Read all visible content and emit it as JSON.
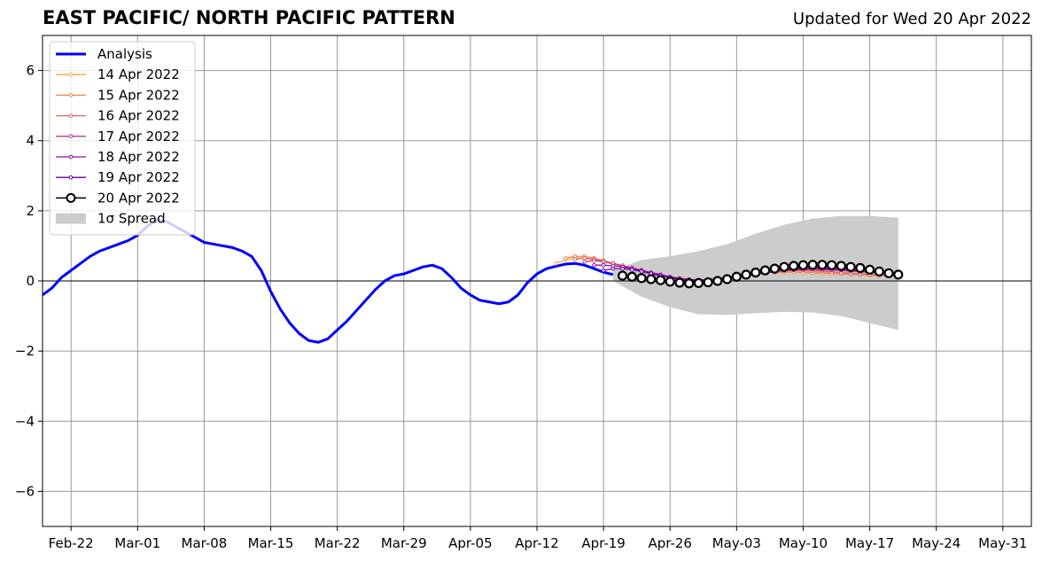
{
  "header": {
    "title": "EAST PACIFIC/ NORTH PACIFIC PATTERN",
    "updated": "Updated for Wed 20 Apr 2022"
  },
  "chart_data": {
    "type": "line",
    "title": "EAST PACIFIC/ NORTH PACIFIC PATTERN",
    "xlim": [
      "2022-02-19",
      "2022-06-03"
    ],
    "ylim": [
      -7,
      7
    ],
    "y_ticks": [
      -6,
      -4,
      -2,
      0,
      2,
      4,
      6
    ],
    "y_tick_labels": [
      "−6",
      "−4",
      "−2",
      "0",
      "2",
      "4",
      "6"
    ],
    "x_ticks": [
      "2022-02-22",
      "2022-03-01",
      "2022-03-08",
      "2022-03-15",
      "2022-03-22",
      "2022-03-29",
      "2022-04-05",
      "2022-04-12",
      "2022-04-19",
      "2022-04-26",
      "2022-05-03",
      "2022-05-10",
      "2022-05-17",
      "2022-05-24",
      "2022-05-31"
    ],
    "x_tick_labels": [
      "Feb-22",
      "Mar-01",
      "Mar-08",
      "Mar-15",
      "Mar-22",
      "Mar-29",
      "Apr-05",
      "Apr-12",
      "Apr-19",
      "Apr-26",
      "May-03",
      "May-10",
      "May-17",
      "May-24",
      "May-31"
    ],
    "grid": true,
    "legend_position": "upper-left",
    "legend": [
      {
        "label": "Analysis",
        "color": "#0000ff",
        "style": "thick-line"
      },
      {
        "label": "14 Apr 2022",
        "color": "#fca636",
        "style": "small-marker-line"
      },
      {
        "label": "15 Apr 2022",
        "color": "#f2844b",
        "style": "small-marker-line"
      },
      {
        "label": "16 Apr 2022",
        "color": "#e16462",
        "style": "small-marker-line"
      },
      {
        "label": "17 Apr 2022",
        "color": "#bf3984",
        "style": "small-marker-line"
      },
      {
        "label": "18 Apr 2022",
        "color": "#8f0da4",
        "style": "small-marker-line"
      },
      {
        "label": "19 Apr 2022",
        "color": "#5c01a6",
        "style": "small-marker-line"
      },
      {
        "label": "20 Apr 2022",
        "color": "#000000",
        "style": "large-open-marker-line"
      },
      {
        "label": "1σ Spread",
        "color": "#cccccc",
        "style": "patch"
      }
    ],
    "analysis": {
      "name": "Analysis",
      "color": "#0000ff",
      "start_date": "2022-02-19",
      "values": [
        -0.4,
        -0.2,
        0.1,
        0.3,
        0.5,
        0.7,
        0.85,
        0.95,
        1.05,
        1.15,
        1.3,
        1.55,
        1.75,
        1.7,
        1.55,
        1.4,
        1.25,
        1.1,
        1.05,
        1.0,
        0.95,
        0.85,
        0.7,
        0.3,
        -0.3,
        -0.8,
        -1.2,
        -1.5,
        -1.7,
        -1.75,
        -1.65,
        -1.4,
        -1.15,
        -0.85,
        -0.55,
        -0.25,
        0.0,
        0.15,
        0.2,
        0.3,
        0.4,
        0.45,
        0.35,
        0.1,
        -0.2,
        -0.4,
        -0.55,
        -0.6,
        -0.65,
        -0.6,
        -0.4,
        -0.05,
        0.2,
        0.35,
        0.42,
        0.48,
        0.5,
        0.45,
        0.35,
        0.25,
        0.18
      ]
    },
    "forecasts": [
      {
        "name": "14 Apr 2022",
        "color": "#fca636",
        "start_date": "2022-04-14",
        "values": [
          0.5,
          0.6,
          0.65,
          0.65,
          0.6,
          0.55,
          0.48,
          0.4,
          0.33,
          0.27,
          0.2,
          0.15,
          0.1,
          0.06,
          0.04,
          0.03,
          0.03,
          0.05,
          0.08,
          0.12,
          0.16,
          0.2,
          0.23,
          0.25,
          0.27,
          0.28,
          0.28,
          0.27,
          0.26,
          0.24,
          0.22,
          0.2,
          0.18,
          0.16,
          0.15
        ]
      },
      {
        "name": "15 Apr 2022",
        "color": "#f2844b",
        "start_date": "2022-04-15",
        "values": [
          0.65,
          0.7,
          0.7,
          0.65,
          0.58,
          0.5,
          0.42,
          0.34,
          0.27,
          0.2,
          0.14,
          0.09,
          0.05,
          0.03,
          0.03,
          0.05,
          0.08,
          0.11,
          0.15,
          0.18,
          0.21,
          0.23,
          0.24,
          0.25,
          0.25,
          0.24,
          0.23,
          0.22,
          0.21,
          0.2,
          0.19,
          0.18,
          0.17,
          0.16
        ]
      },
      {
        "name": "16 Apr 2022",
        "color": "#e16462",
        "start_date": "2022-04-16",
        "values": [
          0.62,
          0.65,
          0.62,
          0.56,
          0.5,
          0.43,
          0.36,
          0.29,
          0.22,
          0.16,
          0.1,
          0.06,
          0.03,
          0.02,
          0.03,
          0.06,
          0.09,
          0.13,
          0.17,
          0.21,
          0.24,
          0.27,
          0.29,
          0.3,
          0.3,
          0.29,
          0.28,
          0.26,
          0.24,
          0.22,
          0.2,
          0.18,
          0.16,
          0.15
        ]
      },
      {
        "name": "17 Apr 2022",
        "color": "#bf3984",
        "start_date": "2022-04-17",
        "values": [
          0.55,
          0.58,
          0.55,
          0.5,
          0.44,
          0.38,
          0.31,
          0.24,
          0.18,
          0.12,
          0.08,
          0.05,
          0.03,
          0.04,
          0.06,
          0.09,
          0.13,
          0.17,
          0.21,
          0.25,
          0.28,
          0.3,
          0.32,
          0.33,
          0.33,
          0.32,
          0.31,
          0.3,
          0.28,
          0.26,
          0.24,
          0.22,
          0.2
        ]
      },
      {
        "name": "18 Apr 2022",
        "color": "#8f0da4",
        "start_date": "2022-04-18",
        "values": [
          0.45,
          0.45,
          0.43,
          0.4,
          0.35,
          0.3,
          0.24,
          0.18,
          0.12,
          0.07,
          0.04,
          0.02,
          0.02,
          0.04,
          0.07,
          0.11,
          0.15,
          0.19,
          0.23,
          0.27,
          0.3,
          0.32,
          0.33,
          0.34,
          0.34,
          0.33,
          0.32,
          0.3,
          0.28,
          0.26,
          0.24,
          0.22
        ]
      },
      {
        "name": "19 Apr 2022",
        "color": "#5c01a6",
        "start_date": "2022-04-19",
        "values": [
          0.3,
          0.35,
          0.35,
          0.32,
          0.27,
          0.21,
          0.15,
          0.09,
          0.04,
          0.01,
          0.0,
          0.0,
          0.02,
          0.06,
          0.1,
          0.15,
          0.2,
          0.24,
          0.28,
          0.32,
          0.35,
          0.37,
          0.38,
          0.38,
          0.37,
          0.36,
          0.34,
          0.32,
          0.3,
          0.28,
          0.26
        ]
      },
      {
        "name": "20 Apr 2022",
        "color": "#000000",
        "start_date": "2022-04-21",
        "values": [
          0.15,
          0.12,
          0.08,
          0.05,
          0.02,
          -0.02,
          -0.05,
          -0.07,
          -0.06,
          -0.04,
          0.0,
          0.05,
          0.12,
          0.18,
          0.24,
          0.3,
          0.35,
          0.4,
          0.43,
          0.45,
          0.46,
          0.46,
          0.45,
          0.43,
          0.4,
          0.37,
          0.32,
          0.27,
          0.22,
          0.18
        ]
      }
    ],
    "spread": {
      "name": "1σ Spread",
      "color": "#cccccc",
      "dates": [
        "2022-04-20",
        "2022-04-23",
        "2022-04-26",
        "2022-04-29",
        "2022-05-02",
        "2022-05-05",
        "2022-05-08",
        "2022-05-11",
        "2022-05-14",
        "2022-05-17",
        "2022-05-20"
      ],
      "upper": [
        0.3,
        0.6,
        0.7,
        0.85,
        1.05,
        1.35,
        1.6,
        1.78,
        1.85,
        1.85,
        1.8
      ],
      "lower": [
        0.0,
        -0.45,
        -0.75,
        -0.95,
        -0.97,
        -0.92,
        -0.88,
        -0.9,
        -1.0,
        -1.2,
        -1.4
      ]
    }
  }
}
